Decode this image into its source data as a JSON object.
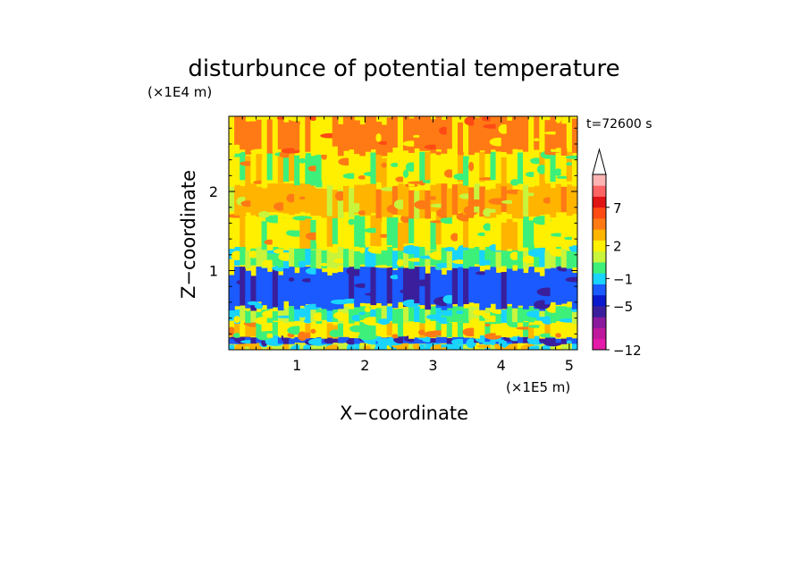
{
  "chart_data": {
    "type": "heatmap",
    "title": "disturbunce of potential temperature",
    "xlabel": "X−coordinate",
    "ylabel": "Z−coordinate",
    "x_unit": "(×1E5 m)",
    "y_unit": "(×1E4 m)",
    "time_label": "t=72600 s",
    "xlim": [
      0,
      5.12
    ],
    "ylim": [
      0,
      2.95
    ],
    "x_ticks": [
      "1",
      "2",
      "3",
      "4",
      "5"
    ],
    "x_tick_values": [
      1,
      2,
      3,
      4,
      5
    ],
    "y_ticks": [
      "1",
      "2"
    ],
    "y_tick_values": [
      1,
      2
    ],
    "colorbar": {
      "colors": [
        "#e61aa8",
        "#c0189c",
        "#8a1b9c",
        "#3a1f9c",
        "#0a1acc",
        "#1a5aff",
        "#19d4ff",
        "#3cf07a",
        "#c8f43c",
        "#fff000",
        "#ffb400",
        "#ff7a14",
        "#ff4a14",
        "#e01414",
        "#ff6464",
        "#ffb4b4"
      ],
      "labels": [
        "−12",
        "−5",
        "−1",
        "2",
        "7"
      ],
      "label_values": [
        -12,
        -5,
        -1,
        2,
        7
      ],
      "extend": "max"
    },
    "layers": [
      {
        "z_range": [
          0.0,
          0.08
        ],
        "value": 0
      },
      {
        "z_range": [
          0.08,
          0.16
        ],
        "value": -5
      },
      {
        "z_range": [
          0.16,
          0.35
        ],
        "value": 1
      },
      {
        "z_range": [
          0.35,
          0.55
        ],
        "value": -1
      },
      {
        "z_range": [
          0.55,
          1.05
        ],
        "value": -5
      },
      {
        "z_range": [
          1.05,
          1.3
        ],
        "value": -1
      },
      {
        "z_range": [
          1.3,
          1.7
        ],
        "value": 1
      },
      {
        "z_range": [
          1.7,
          2.1
        ],
        "value": 2
      },
      {
        "z_range": [
          2.1,
          2.5
        ],
        "value": 1
      },
      {
        "z_range": [
          2.5,
          2.95
        ],
        "value": 3
      }
    ]
  }
}
